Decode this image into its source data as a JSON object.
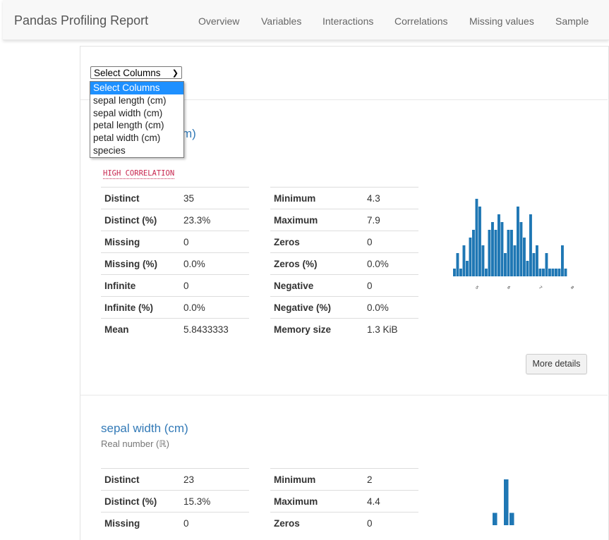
{
  "nav": {
    "brand": "Pandas Profiling Report",
    "links": [
      "Overview",
      "Variables",
      "Interactions",
      "Correlations",
      "Missing values",
      "Sample"
    ]
  },
  "select": {
    "value": "Select Columns",
    "options": [
      "Select Columns",
      "sepal length (cm)",
      "sepal width (cm)",
      "petal length (cm)",
      "petal width (cm)",
      "species"
    ]
  },
  "var1": {
    "title_visible": "m)",
    "badge": "HIGH CORRELATION",
    "left_stats": [
      {
        "k": "Distinct",
        "v": "35"
      },
      {
        "k": "Distinct (%)",
        "v": "23.3%"
      },
      {
        "k": "Missing",
        "v": "0"
      },
      {
        "k": "Missing (%)",
        "v": "0.0%"
      },
      {
        "k": "Infinite",
        "v": "0"
      },
      {
        "k": "Infinite (%)",
        "v": "0.0%"
      },
      {
        "k": "Mean",
        "v": "5.8433333"
      }
    ],
    "right_stats": [
      {
        "k": "Minimum",
        "v": "4.3"
      },
      {
        "k": "Maximum",
        "v": "7.9"
      },
      {
        "k": "Zeros",
        "v": "0"
      },
      {
        "k": "Zeros (%)",
        "v": "0.0%"
      },
      {
        "k": "Negative",
        "v": "0"
      },
      {
        "k": "Negative (%)",
        "v": "0.0%"
      },
      {
        "k": "Memory size",
        "v": "1.3 KiB"
      }
    ],
    "more_details": "More details",
    "chart_data": {
      "type": "bar",
      "color": "#1f77b4",
      "x_ticks": [
        "5",
        "6",
        "7",
        "8"
      ],
      "values": [
        1,
        3,
        1,
        4,
        2,
        5,
        6,
        10,
        9,
        4,
        1,
        6,
        7,
        6,
        8,
        7,
        3,
        6,
        6,
        4,
        9,
        7,
        5,
        2,
        8,
        3,
        4,
        1,
        1,
        3,
        1,
        1,
        1,
        1,
        4,
        1
      ]
    }
  },
  "var2": {
    "title": "sepal width (cm)",
    "type": "Real number (ℝ)",
    "left_stats": [
      {
        "k": "Distinct",
        "v": "23"
      },
      {
        "k": "Distinct (%)",
        "v": "15.3%"
      },
      {
        "k": "Missing",
        "v": "0"
      }
    ],
    "right_stats": [
      {
        "k": "Minimum",
        "v": "2"
      },
      {
        "k": "Maximum",
        "v": "4.4"
      },
      {
        "k": "Zeros",
        "v": "0"
      }
    ],
    "chart_data": {
      "type": "bar",
      "color": "#1f77b4",
      "values": [
        1,
        3,
        1,
        6,
        3,
        1
      ]
    }
  }
}
